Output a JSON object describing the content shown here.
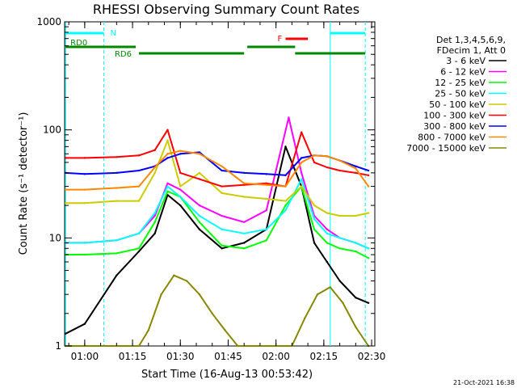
{
  "chart_data": {
    "type": "line",
    "title": "RHESSI Observing Summary Count Rates",
    "xlabel": "Start Time (16-Aug-13 00:53:42)",
    "ylabel": "Count Rate (s⁻¹ detector⁻¹)",
    "yscale": "log",
    "ylim": [
      1,
      1000
    ],
    "xlim_minutes_utc": [
      "00:53:42",
      "02:31:00"
    ],
    "x_ticks": [
      "01:00",
      "01:15",
      "01:30",
      "01:45",
      "02:00",
      "02:15",
      "02:30"
    ],
    "y_ticks": [
      "1",
      "10",
      "100",
      "1000"
    ],
    "footer_date": "21-Oct-2021 16:38",
    "legend_header": [
      "Det 1,3,4,5,6,9,",
      "FDecim 1, Att 0"
    ],
    "legend_position": "right",
    "series": [
      {
        "name": "3 - 6 keV",
        "color": "#000000",
        "x": [
          "00:54",
          "01:00",
          "01:10",
          "01:17",
          "01:22",
          "01:26",
          "01:30",
          "01:36",
          "01:43",
          "01:50",
          "01:57",
          "02:03",
          "02:08",
          "02:12",
          "02:16",
          "02:20",
          "02:25",
          "02:29"
        ],
        "y": [
          1.3,
          1.6,
          4.5,
          7.5,
          11,
          25,
          20,
          12,
          8,
          9,
          12,
          70,
          30,
          9,
          6,
          4,
          2.8,
          2.5
        ]
      },
      {
        "name": "6 - 12 keV",
        "color": "#ff00ff",
        "x": [
          "00:54",
          "01:00",
          "01:10",
          "01:17",
          "01:22",
          "01:26",
          "01:30",
          "01:36",
          "01:43",
          "01:50",
          "01:57",
          "02:04",
          "02:08",
          "02:12",
          "02:16",
          "02:20",
          "02:25",
          "02:29"
        ],
        "y": [
          9,
          9,
          9.5,
          11,
          16,
          32,
          28,
          20,
          16,
          14,
          18,
          130,
          40,
          16,
          12,
          10,
          9,
          8
        ]
      },
      {
        "name": "12 - 25 keV",
        "color": "#00ff00",
        "x": [
          "00:54",
          "01:00",
          "01:10",
          "01:17",
          "01:22",
          "01:26",
          "01:30",
          "01:36",
          "01:43",
          "01:50",
          "01:57",
          "02:03",
          "02:08",
          "02:12",
          "02:16",
          "02:20",
          "02:25",
          "02:29"
        ],
        "y": [
          7,
          7,
          7.2,
          8,
          14,
          27,
          24,
          14,
          8.5,
          8,
          9.5,
          20,
          30,
          12,
          9,
          8,
          7.5,
          6.5
        ]
      },
      {
        "name": "25 - 50 keV",
        "color": "#00ffff",
        "x": [
          "00:54",
          "01:00",
          "01:10",
          "01:17",
          "01:22",
          "01:26",
          "01:30",
          "01:36",
          "01:43",
          "01:50",
          "01:57",
          "02:03",
          "02:08",
          "02:12",
          "02:16",
          "02:20",
          "02:25",
          "02:29"
        ],
        "y": [
          9,
          9,
          9.5,
          11,
          17,
          30,
          24,
          16,
          12,
          11,
          12,
          18,
          35,
          15,
          11,
          10,
          9,
          8
        ]
      },
      {
        "name": "50 - 100 keV",
        "color": "#cccc00",
        "x": [
          "00:54",
          "01:00",
          "01:10",
          "01:17",
          "01:22",
          "01:26",
          "01:30",
          "01:36",
          "01:43",
          "01:50",
          "01:57",
          "02:03",
          "02:08",
          "02:12",
          "02:16",
          "02:20",
          "02:25",
          "02:29"
        ],
        "y": [
          21,
          21,
          22,
          22,
          40,
          80,
          30,
          40,
          26,
          24,
          23,
          22,
          30,
          20,
          17,
          16,
          16,
          17
        ]
      },
      {
        "name": "100 - 300 keV",
        "color": "#ff0000",
        "x": [
          "00:54",
          "01:00",
          "01:10",
          "01:17",
          "01:22",
          "01:26",
          "01:30",
          "01:36",
          "01:43",
          "01:50",
          "01:57",
          "02:03",
          "02:08",
          "02:12",
          "02:16",
          "02:20",
          "02:25",
          "02:29"
        ],
        "y": [
          55,
          55,
          56,
          58,
          65,
          100,
          40,
          35,
          30,
          31,
          32,
          30,
          95,
          50,
          45,
          42,
          40,
          38
        ]
      },
      {
        "name": "300 - 800 keV",
        "color": "#0000ff",
        "x": [
          "00:54",
          "01:00",
          "01:10",
          "01:17",
          "01:22",
          "01:26",
          "01:30",
          "01:36",
          "01:43",
          "01:50",
          "01:57",
          "02:03",
          "02:08",
          "02:12",
          "02:16",
          "02:20",
          "02:25",
          "02:29"
        ],
        "y": [
          40,
          39,
          40,
          42,
          46,
          55,
          60,
          62,
          42,
          40,
          39,
          38,
          55,
          58,
          57,
          52,
          46,
          42
        ]
      },
      {
        "name": "800 - 7000 keV",
        "color": "#ff8800",
        "x": [
          "00:54",
          "01:00",
          "01:10",
          "01:17",
          "01:22",
          "01:26",
          "01:30",
          "01:36",
          "01:43",
          "01:50",
          "01:57",
          "02:03",
          "02:08",
          "02:12",
          "02:16",
          "02:20",
          "02:25",
          "02:29"
        ],
        "y": [
          28,
          28,
          29,
          30,
          45,
          60,
          64,
          60,
          46,
          32,
          31,
          30,
          50,
          58,
          57,
          52,
          44,
          30
        ]
      },
      {
        "name": "7000 - 15000 keV",
        "color": "#888800",
        "x": [
          "00:54",
          "01:00",
          "01:10",
          "01:17",
          "01:20",
          "01:24",
          "01:28",
          "01:32",
          "01:36",
          "01:40",
          "01:44",
          "01:48",
          "02:05",
          "02:09",
          "02:13",
          "02:17",
          "02:21",
          "02:25",
          "02:29"
        ],
        "y": [
          1,
          1,
          1,
          1,
          1.4,
          3,
          4.5,
          4,
          3,
          2,
          1.4,
          1,
          1,
          1.8,
          3,
          3.5,
          2.5,
          1.5,
          1
        ]
      }
    ],
    "annotations": {
      "flags": [
        {
          "label": "N",
          "color": "#00ffff",
          "spans": [
            [
              "00:54",
              "01:06"
            ],
            [
              "02:17",
              "02:28"
            ]
          ]
        },
        {
          "label": "F",
          "color": "#ff0000",
          "spans": [
            [
              "02:03",
              "02:10"
            ]
          ]
        },
        {
          "label": "RD0",
          "color": "#008800",
          "spans": [
            [
              "00:54",
              "01:16"
            ],
            [
              "01:51",
              "02:06"
            ]
          ]
        },
        {
          "label": "RD6",
          "color": "#008800",
          "spans": [
            [
              "01:17",
              "01:50"
            ],
            [
              "02:06",
              "02:28"
            ]
          ]
        }
      ],
      "saa_lines": [
        "01:06",
        "02:28"
      ],
      "night_lines": [
        "00:54",
        "02:17"
      ]
    }
  }
}
